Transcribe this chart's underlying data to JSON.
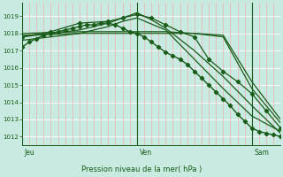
{
  "title": "Pression niveau de la mer( hPa )",
  "bg_color": "#c8eae0",
  "plot_bg_color": "#c8eae0",
  "grid_h_color": "#ffffff",
  "grid_v_color": "#f0b0b0",
  "line_color": "#1a5c1a",
  "marker_color": "#1a5c1a",
  "ylim": [
    1011.5,
    1019.8
  ],
  "yticks": [
    1012,
    1013,
    1014,
    1015,
    1016,
    1017,
    1018,
    1019
  ],
  "day_labels": [
    "Jeu",
    "Ven",
    "Sam"
  ],
  "day_positions": [
    0,
    32,
    64
  ],
  "xlim": [
    0,
    72
  ],
  "series": [
    {
      "x": [
        0,
        2,
        4,
        6,
        8,
        10,
        12,
        14,
        16,
        18,
        20,
        22,
        24,
        26,
        28,
        30,
        32,
        34,
        36,
        38,
        40,
        42,
        44,
        46,
        48,
        50,
        52,
        54,
        56,
        58,
        60,
        62,
        64,
        66,
        68,
        70,
        72
      ],
      "y": [
        1017.2,
        1017.5,
        1017.7,
        1017.9,
        1018.0,
        1018.1,
        1018.2,
        1018.3,
        1018.4,
        1018.5,
        1018.5,
        1018.6,
        1018.6,
        1018.5,
        1018.3,
        1018.1,
        1018.0,
        1017.8,
        1017.5,
        1017.2,
        1016.9,
        1016.7,
        1016.5,
        1016.2,
        1015.8,
        1015.4,
        1015.0,
        1014.6,
        1014.2,
        1013.8,
        1013.3,
        1012.9,
        1012.5,
        1012.3,
        1012.2,
        1012.1,
        1012.0
      ],
      "has_markers": true,
      "lw": 1.0
    },
    {
      "x": [
        0,
        8,
        16,
        24,
        28,
        32,
        36,
        40,
        44,
        48,
        52,
        56,
        60,
        64,
        68,
        72
      ],
      "y": [
        1017.8,
        1018.1,
        1018.6,
        1018.7,
        1018.9,
        1019.1,
        1018.9,
        1018.5,
        1018.1,
        1017.8,
        1016.5,
        1015.8,
        1015.2,
        1014.5,
        1013.5,
        1012.5
      ],
      "has_markers": true,
      "lw": 0.9
    },
    {
      "x": [
        0,
        16,
        32,
        40,
        48,
        56,
        64,
        72
      ],
      "y": [
        1017.9,
        1018.0,
        1018.0,
        1018.0,
        1018.0,
        1017.9,
        1015.2,
        1013.0
      ],
      "has_markers": false,
      "lw": 0.9
    },
    {
      "x": [
        0,
        16,
        32,
        40,
        48,
        56,
        64,
        72
      ],
      "y": [
        1018.0,
        1018.1,
        1018.1,
        1018.1,
        1018.0,
        1017.8,
        1014.8,
        1012.8
      ],
      "has_markers": false,
      "lw": 0.9
    },
    {
      "x": [
        0,
        16,
        24,
        32,
        36,
        40,
        48,
        56,
        64,
        72
      ],
      "y": [
        1017.8,
        1018.2,
        1018.6,
        1019.2,
        1018.8,
        1018.3,
        1017.0,
        1015.5,
        1013.8,
        1012.2
      ],
      "has_markers": false,
      "lw": 0.9
    },
    {
      "x": [
        0,
        16,
        24,
        28,
        32,
        40,
        48,
        56,
        64,
        72
      ],
      "y": [
        1017.6,
        1018.0,
        1018.4,
        1018.7,
        1018.9,
        1018.2,
        1016.5,
        1014.8,
        1013.2,
        1012.3
      ],
      "has_markers": false,
      "lw": 0.9
    }
  ]
}
